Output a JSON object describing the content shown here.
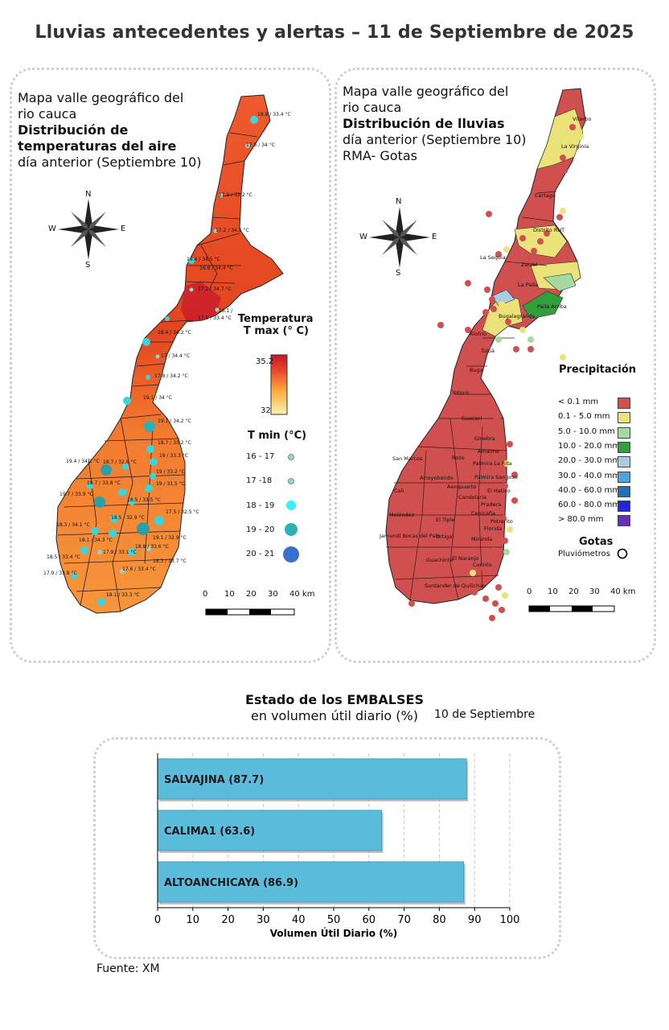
{
  "title": "Lluvias antecedentes y alertas – 11 de Septiembre de 2025",
  "left_map": {
    "title_line1": "Mapa valle geográfico del",
    "title_line2": "rio cauca",
    "title_line3": "Distribución de",
    "title_line4": "temperaturas del aire",
    "title_line5": "día anterior (Septiembre 10)",
    "legend_tmax_title_1": "Temperatura",
    "legend_tmax_title_2": "T max (° C)",
    "tmax_high": "35.2",
    "tmax_low": "32",
    "legend_tmin_title": "T min (°C)",
    "tmin_classes": [
      "16 - 17",
      "17 -18",
      "18 - 19",
      "19 - 20",
      "20 - 21"
    ],
    "scale_labels": [
      "0",
      "10",
      "20",
      "30",
      "40 km"
    ],
    "station_labels": [
      "18.8 / 33.4 °C",
      "17.6 / 34 °C",
      "17.9 / 33.2 °C",
      "17.2 / 34.3 °C",
      "18.4 / 34.5 °C",
      "16.8 / 34.4 °C",
      "17.2 / 34.7 °C",
      "16.1 / ",
      "17.5 / 33.4 °C",
      "18.4 / 34.2 °C",
      "17 / 34.4 °C",
      "17.8 / 34.2 °C",
      "19.1 / 34 °C",
      "19.1 / 34.2 °C",
      "18.7 / 33.2 °C",
      "19.4 / 34.2 °C",
      "18.7 / 32.8 °C",
      "19 / 33.3 °C",
      "18.7 / 33.8 °C",
      "19 / 33.2 °C",
      "19 / 31.5 °C",
      "19.7 / 33.9 °C",
      "18.5 / 33.5 °C",
      "18.3 / 34.1 °C",
      "18.5 / 32.9 °C",
      "17.5 / 32.5 °C",
      "19.1 / 32.9 °C",
      "18.1 / 34.3 °C",
      "18.8 / 33.6 °C",
      "18.5 / 33.4 °C",
      "17.9 / 33.1 °C",
      "18.3 / 33.7 °C",
      "17.9 / 33.8 °C",
      "17.6 / 33.4 °C",
      "18.1 / 33.3 °C"
    ],
    "compass": {
      "n": "N",
      "s": "S",
      "e": "E",
      "w": "W"
    }
  },
  "right_map": {
    "title_line1": "Mapa valle geográfico del",
    "title_line2": "rio cauca",
    "title_line3": "Distribución de lluvias",
    "title_line4": "día anterior (Septiembre 10)",
    "title_line5": "RMA- Gotas",
    "legend_title": "Precipitación",
    "classes": [
      {
        "label": "< 0.1 mm",
        "color": "#d2504f"
      },
      {
        "label": "0.1 - 5.0 mm",
        "color": "#ece27a"
      },
      {
        "label": "5.0 - 10.0 mm",
        "color": "#a6d9a0"
      },
      {
        "label": "10.0 - 20.0 mm",
        "color": "#2fa03a"
      },
      {
        "label": "20.0 - 30.0 mm",
        "color": "#a9cde0"
      },
      {
        "label": "30.0 - 40.0 mm",
        "color": "#4ea3dc"
      },
      {
        "label": "40.0 - 60.0 mm",
        "color": "#2270b6"
      },
      {
        "label": "60.0 - 80.0 mm",
        "color": "#2424e0"
      },
      {
        "label": "> 80.0 mm",
        "color": "#6a2fb8"
      }
    ],
    "gotas_title": "Gotas",
    "gotas_label": "Pluviómetros",
    "scale_labels": [
      "0",
      "10",
      "20",
      "30",
      "40 km"
    ],
    "towns": [
      "Viterbo",
      "La Virginia",
      "Cartago",
      "Distrito RUT",
      "La Sequia",
      "Zarzal",
      "La Paila",
      "Paila Arriba",
      "Bugalagrande",
      "Riofrío",
      "Tuluá",
      "Buga",
      "Yotoco",
      "Guacarí",
      "Ginebra",
      "Amaime",
      "Rozo",
      "San Marcos",
      "Palmira La Rita",
      "Palmira San Jose",
      "Arroyohondo",
      "Aeropuerto",
      "Pradera",
      "Candelaria",
      "Cali",
      "El Hatico",
      "Meléndez",
      "Potrerito",
      "Jamundí Bocas del Palo",
      "Cenicaña",
      "El Tiple",
      "Florida",
      "Ortigal",
      "Miranda",
      "Guachinte",
      "El Naranjo",
      "Corinto",
      "Santander de Quilichao"
    ],
    "compass": {
      "n": "N",
      "s": "S",
      "e": "E",
      "w": "W"
    }
  },
  "reservoirs": {
    "title": "Estado de los EMBALSES",
    "subtitle": "en volumen útil diario (%)",
    "date": "10 de Septiembre",
    "source": "Fuente: XM"
  },
  "chart_data": {
    "type": "bar",
    "orientation": "horizontal",
    "categories": [
      "SALVAJINA (87.7)",
      "CALIMA1 (63.6)",
      "ALTOANCHICAYA (86.9)"
    ],
    "values": [
      87.7,
      63.6,
      86.9
    ],
    "xlabel": "Volumen Útil Diario (%)",
    "xlim": [
      0,
      100
    ],
    "xticks": [
      0,
      10,
      20,
      30,
      40,
      50,
      60,
      70,
      80,
      90,
      100
    ],
    "bar_color": "#5bbcdc",
    "grid": true
  }
}
